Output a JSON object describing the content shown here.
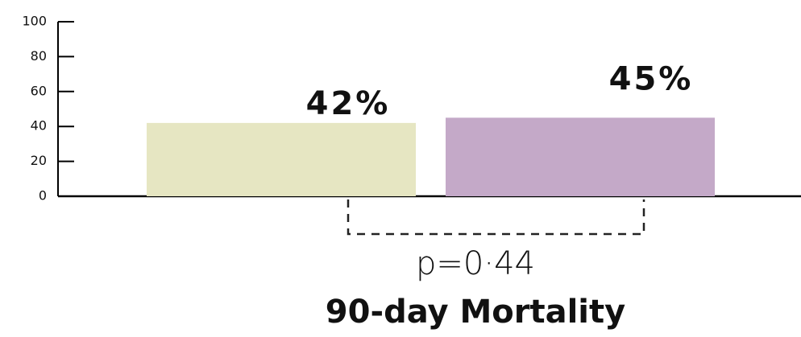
{
  "chart_data": {
    "type": "bar",
    "title": "90-day Mortality",
    "annotation": "p=0·44",
    "categories": [
      null,
      null
    ],
    "values": [
      42,
      45
    ],
    "value_labels": [
      "42%",
      "45%"
    ],
    "colors": [
      "#e6e6c2",
      "#c4a9c8"
    ],
    "ylim": [
      0,
      100
    ],
    "yticks": [
      0,
      20,
      40,
      60,
      80,
      100
    ],
    "grid": false
  }
}
